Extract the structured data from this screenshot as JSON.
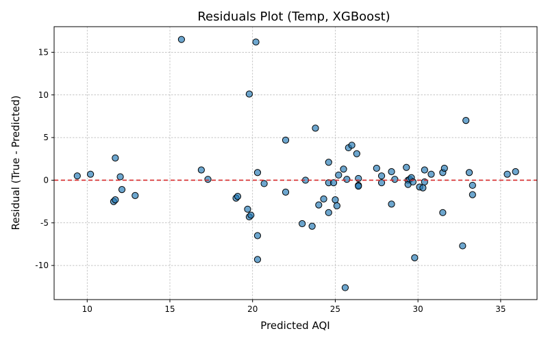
{
  "chart_data": {
    "type": "scatter",
    "title": "Residuals Plot (Temp, XGBoost)",
    "xlabel": "Predicted AQI",
    "ylabel": "Residual (True - Predicted)",
    "xlim": [
      8,
      37.2
    ],
    "ylim": [
      -14,
      18
    ],
    "xticks": [
      10,
      15,
      20,
      25,
      30,
      35
    ],
    "yticks": [
      -10,
      -5,
      0,
      5,
      10,
      15
    ],
    "grid": true,
    "reference_line": {
      "y": 0,
      "color": "#d62728",
      "style": "dashed"
    },
    "point_color": "#1f77b4",
    "points": [
      [
        9.4,
        0.5
      ],
      [
        10.2,
        0.7
      ],
      [
        11.6,
        -2.5
      ],
      [
        11.7,
        -2.3
      ],
      [
        11.7,
        2.6
      ],
      [
        12.0,
        0.4
      ],
      [
        12.1,
        -1.1
      ],
      [
        12.9,
        -1.8
      ],
      [
        15.7,
        16.5
      ],
      [
        16.9,
        1.2
      ],
      [
        17.3,
        0.1
      ],
      [
        19.0,
        -2.1
      ],
      [
        19.1,
        -1.9
      ],
      [
        19.7,
        -3.4
      ],
      [
        19.8,
        10.1
      ],
      [
        19.8,
        -4.3
      ],
      [
        19.9,
        -4.1
      ],
      [
        20.2,
        16.2
      ],
      [
        20.3,
        0.9
      ],
      [
        20.3,
        -6.5
      ],
      [
        20.3,
        -9.3
      ],
      [
        20.7,
        -0.4
      ],
      [
        22.0,
        4.7
      ],
      [
        22.0,
        -1.4
      ],
      [
        23.0,
        -5.1
      ],
      [
        23.2,
        0.0
      ],
      [
        23.6,
        -5.4
      ],
      [
        23.8,
        6.1
      ],
      [
        24.0,
        -2.9
      ],
      [
        24.3,
        -2.2
      ],
      [
        24.6,
        2.1
      ],
      [
        24.6,
        -0.3
      ],
      [
        24.6,
        -3.8
      ],
      [
        24.9,
        -0.3
      ],
      [
        25.0,
        -2.3
      ],
      [
        25.1,
        -3.0
      ],
      [
        25.2,
        0.6
      ],
      [
        25.5,
        1.3
      ],
      [
        25.6,
        -12.6
      ],
      [
        25.7,
        0.1
      ],
      [
        25.8,
        3.8
      ],
      [
        26.0,
        4.1
      ],
      [
        26.3,
        3.1
      ],
      [
        26.4,
        0.2
      ],
      [
        26.4,
        -0.6
      ],
      [
        26.4,
        -0.7
      ],
      [
        27.5,
        1.4
      ],
      [
        27.8,
        0.5
      ],
      [
        27.8,
        -0.3
      ],
      [
        28.4,
        1.0
      ],
      [
        28.4,
        -2.8
      ],
      [
        28.6,
        0.1
      ],
      [
        29.3,
        1.5
      ],
      [
        29.4,
        0.0
      ],
      [
        29.5,
        0.1
      ],
      [
        29.4,
        -0.5
      ],
      [
        29.6,
        0.3
      ],
      [
        29.7,
        -0.2
      ],
      [
        29.8,
        -9.1
      ],
      [
        30.1,
        -0.8
      ],
      [
        30.3,
        -0.9
      ],
      [
        30.4,
        -0.2
      ],
      [
        30.4,
        1.2
      ],
      [
        30.8,
        0.7
      ],
      [
        31.5,
        0.9
      ],
      [
        31.5,
        -3.8
      ],
      [
        31.6,
        1.4
      ],
      [
        32.7,
        -7.7
      ],
      [
        32.9,
        7.0
      ],
      [
        33.1,
        0.9
      ],
      [
        33.3,
        -0.6
      ],
      [
        33.3,
        -1.7
      ],
      [
        35.4,
        0.7
      ],
      [
        35.9,
        1.0
      ]
    ]
  }
}
